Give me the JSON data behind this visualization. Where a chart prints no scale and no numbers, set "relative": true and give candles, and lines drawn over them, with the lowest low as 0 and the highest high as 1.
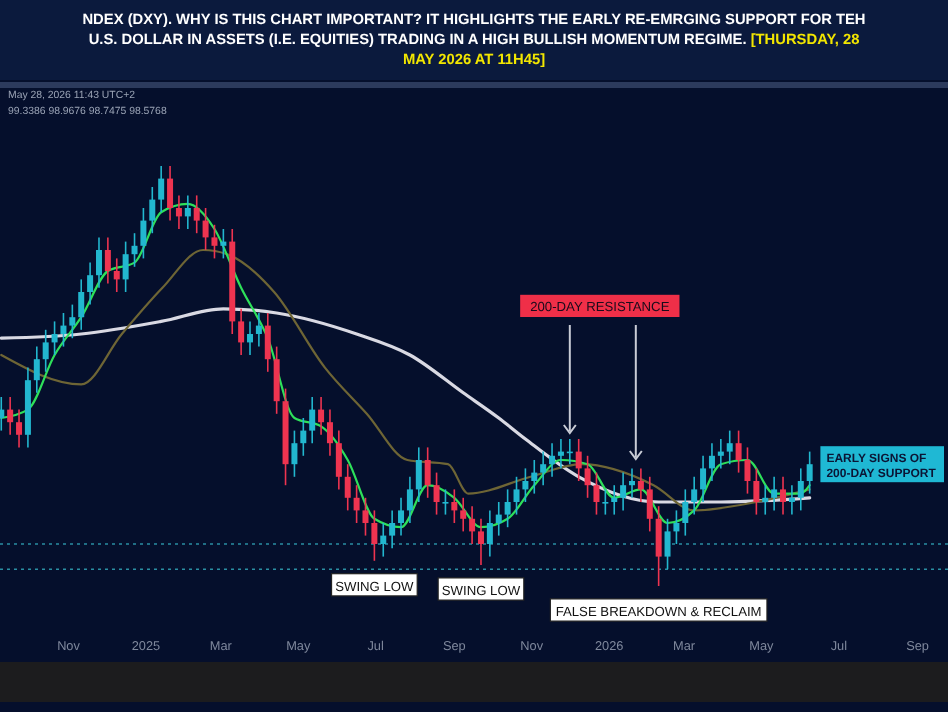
{
  "chart_data": {
    "type": "candlestick",
    "relative": true,
    "title": "NDEX (DXY). WHY IS THIS CHART IMPORTANT? IT HIGHLIGHTS THE EARLY RE-EMRGING SUPPORT FOR TEH U.S. DOLLAR IN ASSETS (I.E. EQUITIES) TRADING IN A HIGH BULLISH MOMENTUM REGIME.",
    "subtitle": "[THURSDAY, 28 MAY 2026 AT 11H45]",
    "xlim": [
      "2024-09-08",
      "2026-09-25"
    ],
    "xticks": [
      {
        "value": "2024-11-01",
        "label": "Nov"
      },
      {
        "value": "2025-01-01",
        "label": "2025"
      },
      {
        "value": "2025-03-01",
        "label": "Mar"
      },
      {
        "value": "2025-05-01",
        "label": "May"
      },
      {
        "value": "2025-07-01",
        "label": "Jul"
      },
      {
        "value": "2025-09-01",
        "label": "Sep"
      },
      {
        "value": "2025-11-01",
        "label": "Nov"
      },
      {
        "value": "2026-01-01",
        "label": "2026"
      },
      {
        "value": "2026-03-01",
        "label": "Mar"
      },
      {
        "value": "2026-05-01",
        "label": "May"
      },
      {
        "value": "2026-07-01",
        "label": "Jul"
      },
      {
        "value": "2026-09-01",
        "label": "Sep"
      }
    ],
    "x": [
      "2024-09-09",
      "2024-09-16",
      "2024-09-23",
      "2024-09-30",
      "2024-10-07",
      "2024-10-14",
      "2024-10-21",
      "2024-10-28",
      "2024-11-04",
      "2024-11-11",
      "2024-11-18",
      "2024-11-25",
      "2024-12-02",
      "2024-12-09",
      "2024-12-16",
      "2024-12-23",
      "2024-12-30",
      "2025-01-06",
      "2025-01-13",
      "2025-01-20",
      "2025-01-27",
      "2025-02-03",
      "2025-02-10",
      "2025-02-17",
      "2025-02-24",
      "2025-03-03",
      "2025-03-10",
      "2025-03-17",
      "2025-03-24",
      "2025-03-31",
      "2025-04-07",
      "2025-04-14",
      "2025-04-21",
      "2025-04-28",
      "2025-05-05",
      "2025-05-12",
      "2025-05-19",
      "2025-05-26",
      "2025-06-02",
      "2025-06-09",
      "2025-06-16",
      "2025-06-23",
      "2025-06-30",
      "2025-07-07",
      "2025-07-14",
      "2025-07-21",
      "2025-07-28",
      "2025-08-04",
      "2025-08-11",
      "2025-08-18",
      "2025-08-25",
      "2025-09-01",
      "2025-09-08",
      "2025-09-15",
      "2025-09-22",
      "2025-09-29",
      "2025-10-06",
      "2025-10-13",
      "2025-10-20",
      "2025-10-27",
      "2025-11-03",
      "2025-11-10",
      "2025-11-17",
      "2025-11-24",
      "2025-12-01",
      "2025-12-08",
      "2025-12-15",
      "2025-12-22",
      "2025-12-29",
      "2026-01-05",
      "2026-01-12",
      "2026-01-19",
      "2026-01-26",
      "2026-02-02",
      "2026-02-09",
      "2026-02-16",
      "2026-02-23",
      "2026-03-02",
      "2026-03-09",
      "2026-03-16",
      "2026-03-23",
      "2026-03-30",
      "2026-04-06",
      "2026-04-13",
      "2026-04-20",
      "2026-04-27",
      "2026-05-04",
      "2026-05-11",
      "2026-05-18",
      "2026-05-25",
      "2026-06-01",
      "2026-06-08"
    ],
    "ohlc": [
      [
        0.4,
        0.45,
        0.37,
        0.42
      ],
      [
        0.42,
        0.45,
        0.36,
        0.39
      ],
      [
        0.39,
        0.42,
        0.33,
        0.36
      ],
      [
        0.36,
        0.52,
        0.33,
        0.49
      ],
      [
        0.49,
        0.57,
        0.46,
        0.54
      ],
      [
        0.54,
        0.61,
        0.51,
        0.58
      ],
      [
        0.58,
        0.63,
        0.55,
        0.6
      ],
      [
        0.6,
        0.65,
        0.57,
        0.62
      ],
      [
        0.62,
        0.67,
        0.59,
        0.64
      ],
      [
        0.64,
        0.73,
        0.61,
        0.7
      ],
      [
        0.7,
        0.77,
        0.67,
        0.74
      ],
      [
        0.74,
        0.83,
        0.71,
        0.8
      ],
      [
        0.8,
        0.83,
        0.72,
        0.75
      ],
      [
        0.75,
        0.78,
        0.7,
        0.73
      ],
      [
        0.73,
        0.82,
        0.7,
        0.79
      ],
      [
        0.79,
        0.84,
        0.76,
        0.81
      ],
      [
        0.81,
        0.9,
        0.78,
        0.87
      ],
      [
        0.87,
        0.95,
        0.84,
        0.92
      ],
      [
        0.92,
        1.0,
        0.89,
        0.97
      ],
      [
        0.97,
        1.0,
        0.87,
        0.9
      ],
      [
        0.9,
        0.93,
        0.85,
        0.88
      ],
      [
        0.88,
        0.93,
        0.85,
        0.9
      ],
      [
        0.9,
        0.93,
        0.84,
        0.87
      ],
      [
        0.87,
        0.9,
        0.8,
        0.83
      ],
      [
        0.83,
        0.86,
        0.78,
        0.81
      ],
      [
        0.81,
        0.85,
        0.78,
        0.82
      ],
      [
        0.82,
        0.85,
        0.6,
        0.63
      ],
      [
        0.63,
        0.66,
        0.55,
        0.58
      ],
      [
        0.58,
        0.63,
        0.55,
        0.6
      ],
      [
        0.6,
        0.65,
        0.57,
        0.62
      ],
      [
        0.62,
        0.65,
        0.51,
        0.54
      ],
      [
        0.54,
        0.57,
        0.41,
        0.44
      ],
      [
        0.44,
        0.47,
        0.24,
        0.29
      ],
      [
        0.29,
        0.37,
        0.26,
        0.34
      ],
      [
        0.34,
        0.4,
        0.31,
        0.37
      ],
      [
        0.37,
        0.45,
        0.34,
        0.42
      ],
      [
        0.42,
        0.45,
        0.36,
        0.39
      ],
      [
        0.39,
        0.42,
        0.31,
        0.34
      ],
      [
        0.34,
        0.37,
        0.23,
        0.26
      ],
      [
        0.26,
        0.29,
        0.18,
        0.21
      ],
      [
        0.21,
        0.24,
        0.15,
        0.18
      ],
      [
        0.18,
        0.21,
        0.12,
        0.15
      ],
      [
        0.15,
        0.18,
        0.06,
        0.1
      ],
      [
        0.1,
        0.15,
        0.07,
        0.12
      ],
      [
        0.12,
        0.18,
        0.09,
        0.15
      ],
      [
        0.15,
        0.21,
        0.12,
        0.18
      ],
      [
        0.18,
        0.26,
        0.15,
        0.23
      ],
      [
        0.23,
        0.33,
        0.2,
        0.3
      ],
      [
        0.3,
        0.33,
        0.21,
        0.24
      ],
      [
        0.24,
        0.27,
        0.17,
        0.2
      ],
      [
        0.2,
        0.23,
        0.17,
        0.2
      ],
      [
        0.2,
        0.23,
        0.15,
        0.18
      ],
      [
        0.18,
        0.21,
        0.13,
        0.16
      ],
      [
        0.16,
        0.19,
        0.1,
        0.13
      ],
      [
        0.13,
        0.16,
        0.05,
        0.1
      ],
      [
        0.1,
        0.18,
        0.07,
        0.15
      ],
      [
        0.15,
        0.2,
        0.12,
        0.17
      ],
      [
        0.17,
        0.23,
        0.14,
        0.2
      ],
      [
        0.2,
        0.26,
        0.17,
        0.23
      ],
      [
        0.23,
        0.28,
        0.2,
        0.25
      ],
      [
        0.25,
        0.3,
        0.22,
        0.27
      ],
      [
        0.27,
        0.32,
        0.24,
        0.29
      ],
      [
        0.29,
        0.34,
        0.26,
        0.31
      ],
      [
        0.31,
        0.35,
        0.28,
        0.32
      ],
      [
        0.32,
        0.35,
        0.29,
        0.32
      ],
      [
        0.32,
        0.35,
        0.25,
        0.28
      ],
      [
        0.28,
        0.31,
        0.21,
        0.24
      ],
      [
        0.24,
        0.27,
        0.17,
        0.2
      ],
      [
        0.2,
        0.23,
        0.17,
        0.2
      ],
      [
        0.2,
        0.24,
        0.17,
        0.21
      ],
      [
        0.21,
        0.27,
        0.18,
        0.24
      ],
      [
        0.24,
        0.28,
        0.21,
        0.25
      ],
      [
        0.25,
        0.28,
        0.2,
        0.23
      ],
      [
        0.23,
        0.26,
        0.13,
        0.16
      ],
      [
        0.16,
        0.19,
        0.0,
        0.07
      ],
      [
        0.07,
        0.16,
        0.04,
        0.13
      ],
      [
        0.13,
        0.18,
        0.1,
        0.15
      ],
      [
        0.15,
        0.23,
        0.12,
        0.2
      ],
      [
        0.2,
        0.26,
        0.17,
        0.23
      ],
      [
        0.23,
        0.31,
        0.2,
        0.28
      ],
      [
        0.28,
        0.34,
        0.25,
        0.31
      ],
      [
        0.31,
        0.35,
        0.28,
        0.32
      ],
      [
        0.32,
        0.37,
        0.29,
        0.34
      ],
      [
        0.34,
        0.37,
        0.27,
        0.3
      ],
      [
        0.3,
        0.33,
        0.22,
        0.25
      ],
      [
        0.25,
        0.28,
        0.17,
        0.2
      ],
      [
        0.2,
        0.24,
        0.17,
        0.21
      ],
      [
        0.21,
        0.26,
        0.18,
        0.23
      ],
      [
        0.23,
        0.26,
        0.17,
        0.2
      ],
      [
        0.2,
        0.24,
        0.17,
        0.21
      ],
      [
        0.21,
        0.28,
        0.18,
        0.25
      ],
      [
        0.25,
        0.32,
        0.22,
        0.29
      ]
    ],
    "series": [
      {
        "type": "line",
        "color": "#d9d9e3",
        "x": [
          "2024-09-09",
          "2024-11-11",
          "2025-01-13",
          "2025-03-03",
          "2025-04-14",
          "2025-06-16",
          "2025-07-28",
          "2025-09-08",
          "2025-10-06",
          "2025-10-27",
          "2025-12-08",
          "2026-02-09",
          "2026-03-30",
          "2026-06-08"
        ],
        "values": [
          0.59,
          0.6,
          0.63,
          0.66,
          0.65,
          0.6,
          0.55,
          0.46,
          0.4,
          0.35,
          0.26,
          0.2,
          0.2,
          0.21
        ]
      },
      {
        "type": "line",
        "color": "#6e6535",
        "x": [
          "2024-09-09",
          "2024-11-11",
          "2024-12-13",
          "2025-01-14",
          "2025-02-15",
          "2025-03-06",
          "2025-04-12",
          "2025-05-22",
          "2025-06-24",
          "2025-07-26",
          "2025-08-27",
          "2025-09-12",
          "2025-10-31",
          "2025-12-10",
          "2026-02-05",
          "2026-03-09",
          "2026-04-27",
          "2026-06-08"
        ],
        "values": [
          0.55,
          0.48,
          0.6,
          0.71,
          0.8,
          0.79,
          0.7,
          0.52,
          0.41,
          0.3,
          0.29,
          0.22,
          0.26,
          0.29,
          0.24,
          0.18,
          0.2,
          0.23
        ]
      },
      {
        "type": "line",
        "color": "#2ee05a",
        "x": [
          "2024-09-09",
          "2024-09-30",
          "2024-10-21",
          "2024-11-11",
          "2024-12-02",
          "2024-12-23",
          "2025-01-13",
          "2025-02-03",
          "2025-02-24",
          "2025-03-17",
          "2025-04-07",
          "2025-04-28",
          "2025-05-19",
          "2025-06-09",
          "2025-06-30",
          "2025-07-21",
          "2025-08-11",
          "2025-09-01",
          "2025-09-22",
          "2025-10-13",
          "2025-11-03",
          "2025-11-24",
          "2025-12-15",
          "2026-01-05",
          "2026-01-26",
          "2026-02-16",
          "2026-03-09",
          "2026-03-30",
          "2026-04-20",
          "2026-05-11",
          "2026-06-01",
          "2026-06-08"
        ],
        "values": [
          0.4,
          0.42,
          0.55,
          0.64,
          0.75,
          0.77,
          0.89,
          0.91,
          0.85,
          0.71,
          0.59,
          0.4,
          0.38,
          0.3,
          0.16,
          0.14,
          0.24,
          0.21,
          0.14,
          0.16,
          0.24,
          0.3,
          0.29,
          0.21,
          0.23,
          0.15,
          0.18,
          0.29,
          0.3,
          0.22,
          0.22,
          0.24
        ]
      }
    ],
    "ref_lines": [
      {
        "axis": "y",
        "value": 0.1,
        "color": "#2a8fa3",
        "line_style": "dotted"
      },
      {
        "axis": "y",
        "value": 0.04,
        "color": "#2a8fa3",
        "line_style": "dotted"
      }
    ],
    "annotations": [
      "May 28, 2026 11:43 UTC+2",
      "99.3386 98.9676 98.7475 98.5768",
      {
        "text": "200-DAY RESISTANCE",
        "x": "2025-12-01",
        "y": 0.35
      },
      {
        "text": "SWING LOW",
        "x": "2025-06-30",
        "y": 0.06
      },
      {
        "text": "SWING LOW",
        "x": "2025-09-22",
        "y": 0.05
      },
      {
        "text": "FALSE BREAKDOWN & RECLAIM",
        "x": "2026-02-09",
        "y": 0.0
      },
      {
        "text": "EARLY SIGNS OF\n200-DAY SUPPORT",
        "x": "2026-06-08",
        "y": 0.29
      }
    ]
  }
}
